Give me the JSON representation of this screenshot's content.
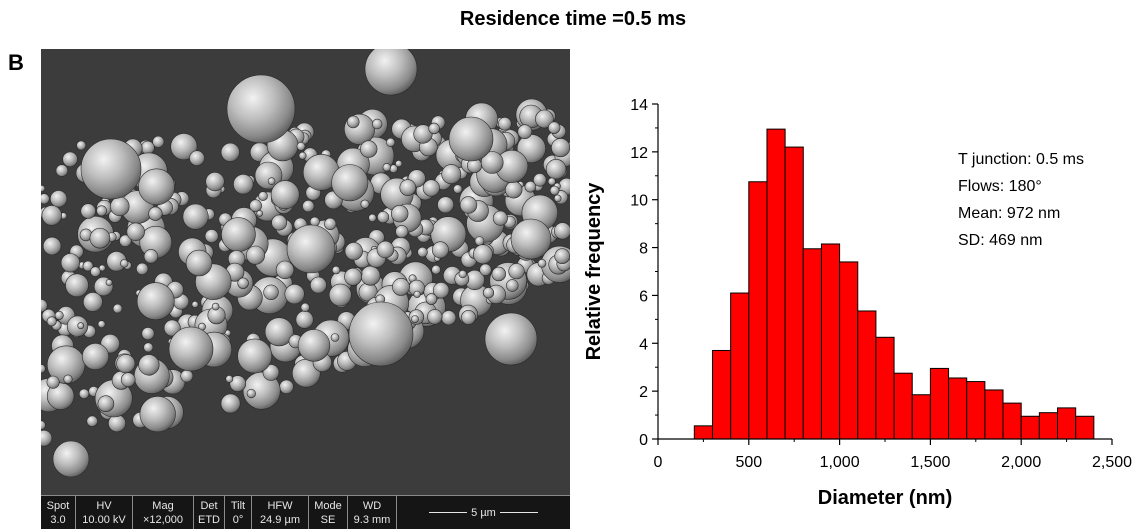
{
  "figure": {
    "title": "Residence time =0.5 ms",
    "panel_label": "B"
  },
  "sem": {
    "info_bar": [
      {
        "label": "Spot",
        "value": "3.0"
      },
      {
        "label": "HV",
        "value": "10.00 kV"
      },
      {
        "label": "Mag",
        "value": "×12,000"
      },
      {
        "label": "Det",
        "value": "ETD"
      },
      {
        "label": "Tilt",
        "value": "0°"
      },
      {
        "label": "HFW",
        "value": "24.9 µm"
      },
      {
        "label": "Mode",
        "value": "SE"
      },
      {
        "label": "WD",
        "value": "9.3 mm"
      }
    ],
    "scale_bar": "5 µm"
  },
  "chart_data": {
    "type": "bar",
    "bin_width": 100,
    "bin_centers": [
      250,
      350,
      450,
      550,
      650,
      750,
      850,
      950,
      1050,
      1150,
      1250,
      1350,
      1450,
      1550,
      1650,
      1750,
      1850,
      1950,
      2050,
      2150,
      2250,
      2350
    ],
    "values": [
      0.55,
      3.7,
      6.1,
      10.75,
      12.95,
      12.2,
      7.95,
      8.15,
      7.4,
      5.35,
      4.25,
      2.75,
      1.85,
      2.95,
      2.55,
      2.4,
      2.05,
      1.5,
      0.95,
      1.1,
      1.3,
      0.95
    ],
    "xlabel": "Diameter (nm)",
    "ylabel": "Relative frequency",
    "xlim": [
      0,
      2500
    ],
    "ylim": [
      0,
      14
    ],
    "xticks": [
      0,
      500,
      1000,
      1500,
      2000,
      2500
    ],
    "xtick_labels": [
      "0",
      "500",
      "1,000",
      "1,500",
      "2,000",
      "2,500"
    ],
    "yticks": [
      0,
      2,
      4,
      6,
      8,
      10,
      12,
      14
    ],
    "ytick_labels": [
      "0",
      "2",
      "4",
      "6",
      "8",
      "10",
      "12",
      "14"
    ],
    "bar_color": "#ff0000",
    "bar_edge_color": "#000000",
    "grid": false,
    "annotations": [
      "T junction: 0.5 ms",
      "Flows: 180°",
      "Mean: 972 nm",
      "SD: 469 nm"
    ]
  }
}
